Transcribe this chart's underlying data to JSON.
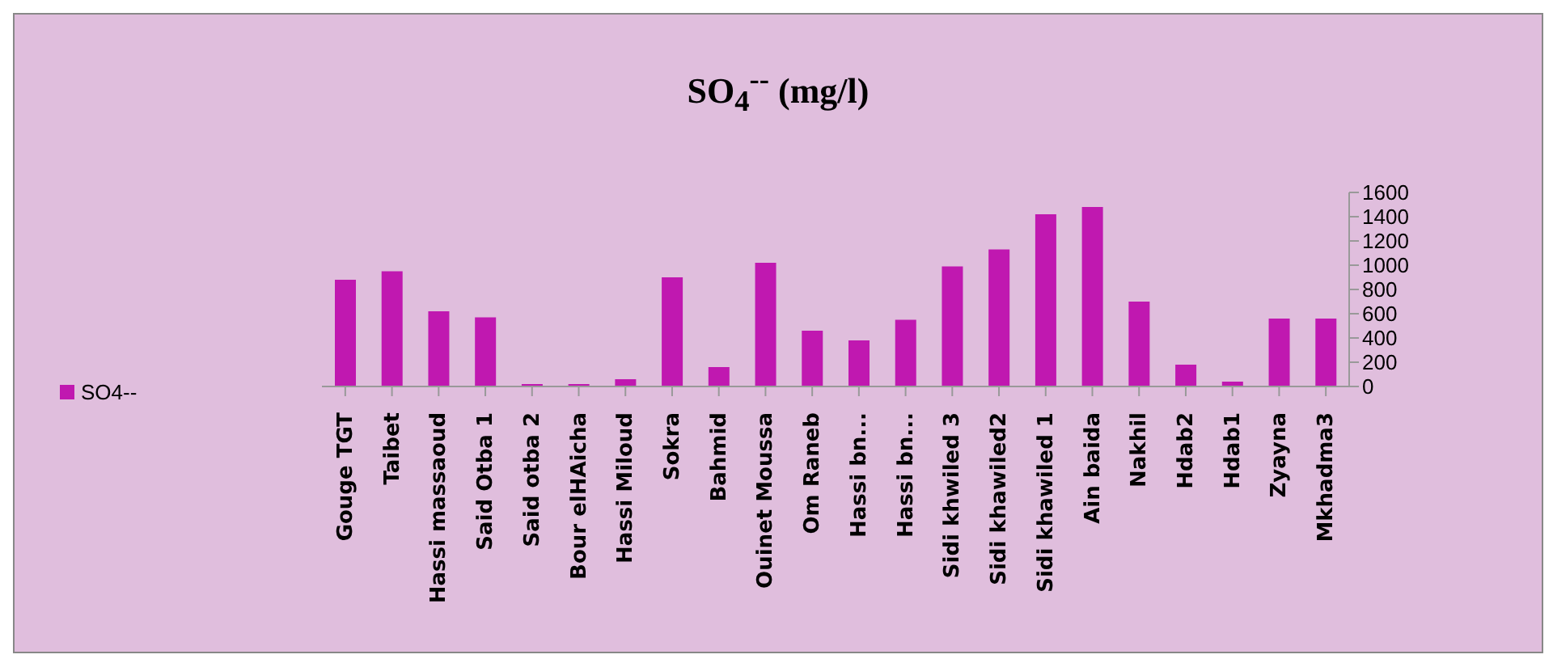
{
  "chart_data": {
    "type": "bar",
    "title": "SO$_{4}$$^{--}$ (mg/l)",
    "categories": [
      "Gouge TGT",
      "Taibet",
      "Hassi massaoud",
      "Said Otba 1",
      "Said otba 2",
      "Bour elHAicha",
      "Hassi Miloud",
      "Sokra",
      "Bahmid",
      "Ouinet Moussa",
      "Om Raneb",
      "Hassi bn...",
      "Hassi bn...",
      "Sidi khwiled 3",
      "Sidi khawiled2",
      "Sidi khawiled 1",
      "Ain baida",
      "Nakhil",
      "Hdab2",
      "Hdab1",
      "Zyayna",
      "Mkhadma3"
    ],
    "series": [
      {
        "name": "SO4--",
        "color": "#c018b0",
        "values": [
          880,
          950,
          620,
          570,
          20,
          20,
          60,
          900,
          160,
          1020,
          460,
          380,
          550,
          990,
          1130,
          1420,
          1480,
          700,
          180,
          40,
          560,
          560
        ]
      }
    ],
    "ylim": [
      0,
      1600
    ],
    "yticks": [
      0,
      200,
      400,
      600,
      800,
      1000,
      1200,
      1400,
      1600
    ],
    "legend": "left"
  }
}
